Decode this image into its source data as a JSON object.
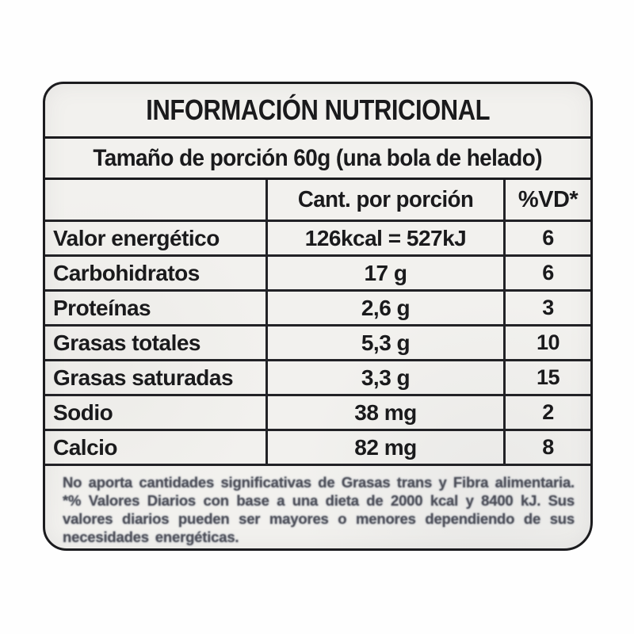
{
  "label": {
    "title": "INFORMACIÓN NUTRICIONAL",
    "serving_size": "Tamaño de porción 60g (una bola de helado)",
    "table": {
      "header": {
        "amount": "Cant. por porción",
        "daily_value": "%VD*"
      },
      "rows": [
        {
          "nutrient": "Valor energético",
          "amount": "126kcal = 527kJ",
          "dv": "6"
        },
        {
          "nutrient": "Carbohidratos",
          "amount": "17 g",
          "dv": "6"
        },
        {
          "nutrient": "Proteínas",
          "amount": "2,6 g",
          "dv": "3"
        },
        {
          "nutrient": "Grasas totales",
          "amount": "5,3 g",
          "dv": "10"
        },
        {
          "nutrient": "Grasas saturadas",
          "amount": "3,3 g",
          "dv": "15"
        },
        {
          "nutrient": "Sodio",
          "amount": "38 mg",
          "dv": "2"
        },
        {
          "nutrient": "Calcio",
          "amount": "82 mg",
          "dv": "8"
        }
      ]
    },
    "footnote": "No aporta cantidades significativas de Grasas trans y Fibra alimentaria. *% Valores Diarios con base a una dieta de 2000 kcal y 8400 kJ. Sus valores diarios pueden ser mayores o menores dependiendo de sus necesidades energéticas.",
    "colors": {
      "label_background": "#f2f1ee",
      "border": "#1b1b1e",
      "text": "#1a1a1c",
      "footnote_text": "#4a4b55"
    }
  }
}
